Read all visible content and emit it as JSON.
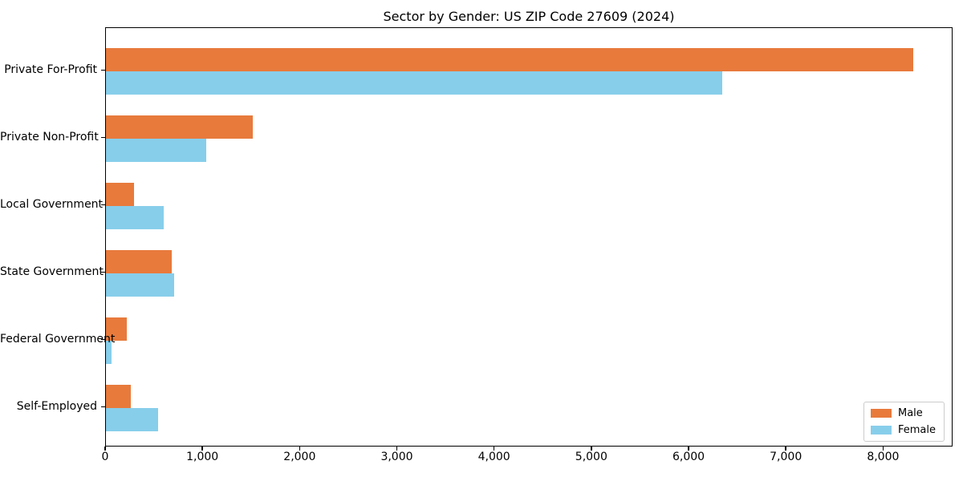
{
  "chart_data": {
    "type": "bar",
    "orientation": "horizontal",
    "title": "Sector by Gender: US ZIP Code 27609 (2024)",
    "categories": [
      "Private For-Profit",
      "Private Non-Profit",
      "Local Government",
      "State Government",
      "Federal Government",
      "Self-Employed"
    ],
    "series": [
      {
        "name": "Male",
        "color": "#e87a3c",
        "values": [
          8300,
          1510,
          290,
          680,
          215,
          255
        ]
      },
      {
        "name": "Female",
        "color": "#87ceeb",
        "values": [
          6340,
          1030,
          595,
          705,
          60,
          540
        ]
      }
    ],
    "xlim": [
      0,
      8715
    ],
    "xticks": [
      0,
      1000,
      2000,
      3000,
      4000,
      5000,
      6000,
      7000,
      8000
    ],
    "xtick_labels": [
      "0",
      "1,000",
      "2,000",
      "3,000",
      "4,000",
      "5,000",
      "6,000",
      "7,000",
      "8,000"
    ],
    "xlabel": "",
    "ylabel": "",
    "grid": false,
    "legend_position": "lower right"
  }
}
